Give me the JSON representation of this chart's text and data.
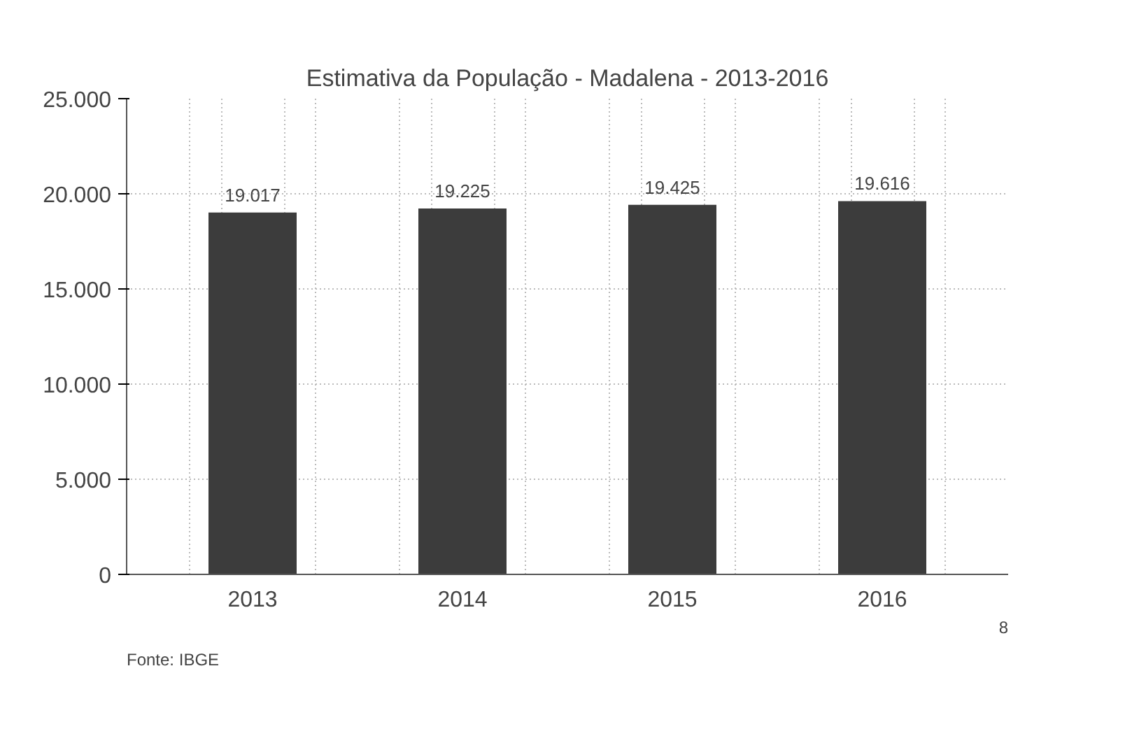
{
  "chart_data": {
    "type": "bar",
    "title": "Estimativa da População - Madalena - 2013-2016",
    "categories": [
      "2013",
      "2014",
      "2015",
      "2016"
    ],
    "values": [
      19017,
      19225,
      19425,
      19616
    ],
    "value_labels": [
      "19.017",
      "19.225",
      "19.425",
      "19.616"
    ],
    "color": "#3c3c3c",
    "ylim": [
      0,
      25000
    ],
    "yticks": [
      {
        "value": 0,
        "label": "0"
      },
      {
        "value": 5000,
        "label": "5.000"
      },
      {
        "value": 10000,
        "label": "10.000"
      },
      {
        "value": 15000,
        "label": "15.000"
      },
      {
        "value": 20000,
        "label": "20.000"
      },
      {
        "value": 25000,
        "label": "25.000"
      }
    ],
    "grid": true,
    "annotations": [
      "Fonte: IBGE",
      "8"
    ]
  }
}
